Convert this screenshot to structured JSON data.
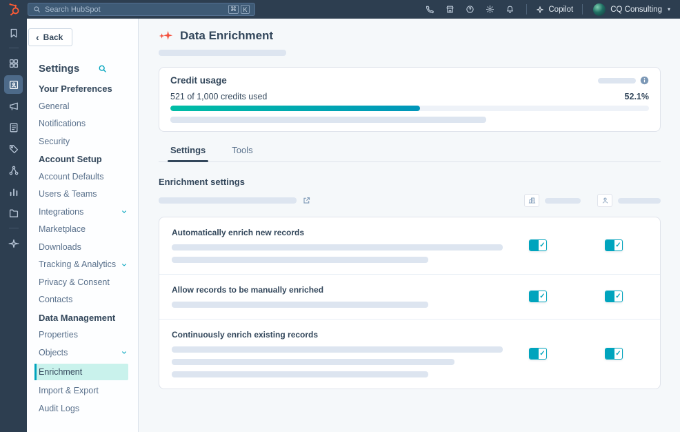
{
  "topbar": {
    "search": {
      "placeholder": "Search HubSpot",
      "shortcut": [
        "⌘",
        "K"
      ]
    },
    "actions": [
      {
        "name": "calls-icon"
      },
      {
        "name": "marketplace-icon"
      },
      {
        "name": "help-icon"
      },
      {
        "name": "settings-gear-icon"
      },
      {
        "name": "notifications-bell-icon"
      }
    ],
    "copilot_label": "Copilot",
    "account_name": "CQ Consulting"
  },
  "icon_rail": {
    "items": [
      {
        "name": "bookmarks-icon"
      },
      {
        "name": "divider"
      },
      {
        "name": "workspaces-icon"
      },
      {
        "name": "crm-icon",
        "selected": true
      },
      {
        "name": "marketing-icon"
      },
      {
        "name": "content-icon"
      },
      {
        "name": "commerce-icon"
      },
      {
        "name": "automations-icon"
      },
      {
        "name": "reporting-icon"
      },
      {
        "name": "library-icon"
      },
      {
        "name": "divider"
      },
      {
        "name": "ai-sparkle-icon"
      }
    ]
  },
  "sidebar": {
    "back_label": "Back",
    "title": "Settings",
    "sections": [
      {
        "heading": "Your Preferences",
        "items": [
          {
            "label": "General"
          },
          {
            "label": "Notifications"
          },
          {
            "label": "Security"
          }
        ]
      },
      {
        "heading": "Account Setup",
        "items": [
          {
            "label": "Account Defaults"
          },
          {
            "label": "Users & Teams"
          },
          {
            "label": "Integrations",
            "chevron": true
          },
          {
            "label": "Marketplace Downloads"
          },
          {
            "label": "Tracking & Analytics",
            "chevron": true
          },
          {
            "label": "Privacy & Consent"
          },
          {
            "label": "Contacts"
          }
        ]
      },
      {
        "heading": "Data Management",
        "items": [
          {
            "label": "Properties"
          },
          {
            "label": "Objects",
            "chevron": true
          },
          {
            "label": "Enrichment",
            "selected": true
          },
          {
            "label": "Import & Export"
          },
          {
            "label": "Audit Logs"
          }
        ]
      }
    ]
  },
  "main": {
    "title": "Data Enrichment",
    "credit_usage": {
      "title": "Credit usage",
      "usage_text": "521 of 1,000 credits used",
      "percent_text": "52.1%",
      "percent_value": 52.1
    },
    "tabs": [
      {
        "label": "Settings",
        "active": true
      },
      {
        "label": "Tools",
        "active": false
      }
    ],
    "enrichment_heading": "Enrichment settings",
    "column_icons": [
      {
        "name": "companies-icon"
      },
      {
        "name": "contacts-icon"
      }
    ],
    "rows": [
      {
        "label": "Automatically enrich new records",
        "skeleton_widths": [
          480,
          372
        ],
        "toggles": [
          true,
          true
        ]
      },
      {
        "label": "Allow records to be manually enriched",
        "skeleton_widths": [
          372
        ],
        "toggles": [
          true,
          true
        ]
      },
      {
        "label": "Continuously enrich existing records",
        "skeleton_widths": [
          480,
          410,
          372
        ],
        "toggles": [
          true,
          true
        ]
      }
    ]
  },
  "colors": {
    "navy": "#2d3e50",
    "teal": "#00a4bd",
    "green": "#00bda5",
    "selected_bg": "#c9f2ec",
    "accent_red": "#f4503d",
    "page_bg": "#f5f8fa"
  }
}
